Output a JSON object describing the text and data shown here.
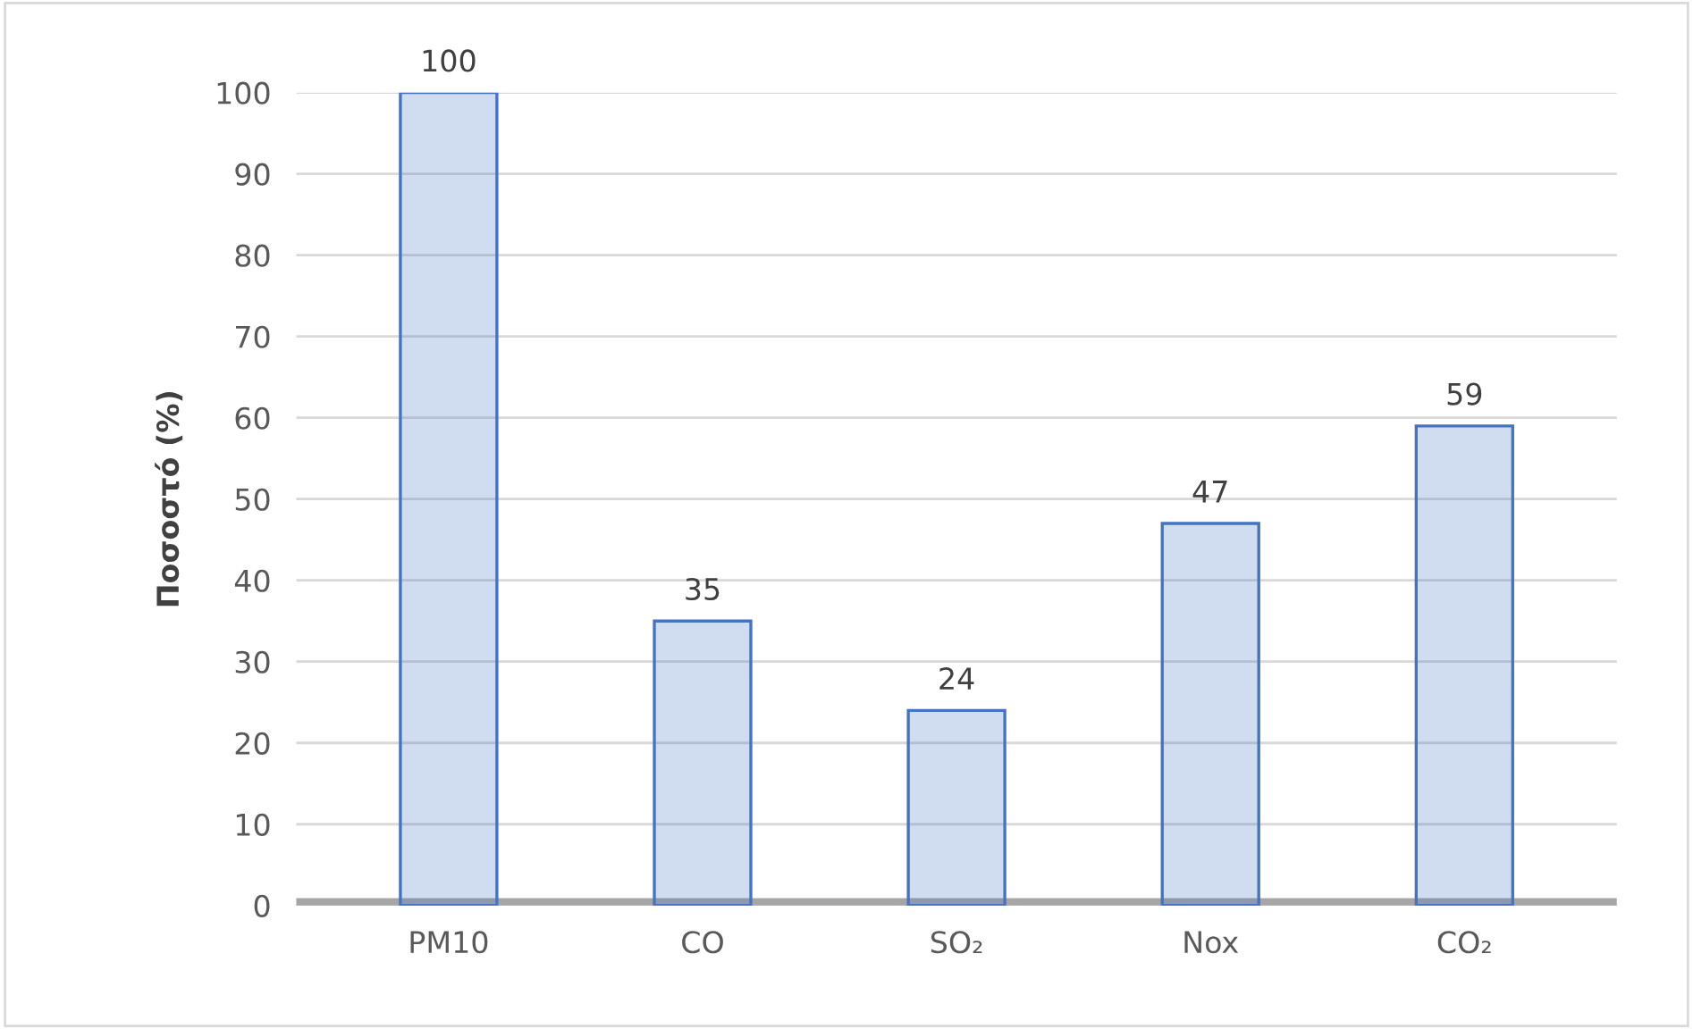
{
  "chart_data": {
    "type": "bar",
    "ylabel": "Ποσοστό (%)",
    "categories": [
      "PM10",
      "CO",
      "SO₂",
      "Nox",
      "CO₂"
    ],
    "values": [
      100,
      35,
      24,
      47,
      59
    ],
    "color": "#4472c4",
    "ylim": [
      0,
      100
    ],
    "yticks": [
      0,
      10,
      20,
      30,
      40,
      50,
      60,
      70,
      80,
      90,
      100
    ],
    "grid": "y",
    "data_labels": true
  }
}
